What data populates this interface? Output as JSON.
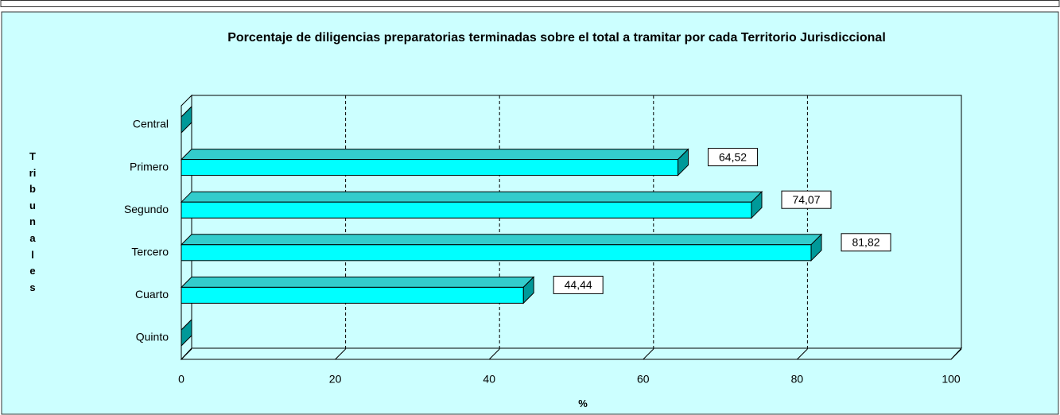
{
  "chart_data": {
    "type": "bar3d_horizontal",
    "title": "Porcentaje de diligencias preparatorias terminadas sobre el total a tramitar por cada Territorio Jurisdiccional",
    "x_label": "%",
    "y_label": "Tribunales",
    "categories": [
      "Central",
      "Primero",
      "Segundo",
      "Tercero",
      "Cuarto",
      "Quinto"
    ],
    "values": [
      0,
      64.52,
      74.07,
      81.82,
      44.44,
      0
    ],
    "value_labels": [
      null,
      "64,52",
      "74,07",
      "81,82",
      "44,44",
      null
    ],
    "color": "#00ffff",
    "xlim": [
      0,
      100
    ],
    "xticks": [
      0,
      20,
      40,
      60,
      80,
      100
    ],
    "grid": true
  }
}
